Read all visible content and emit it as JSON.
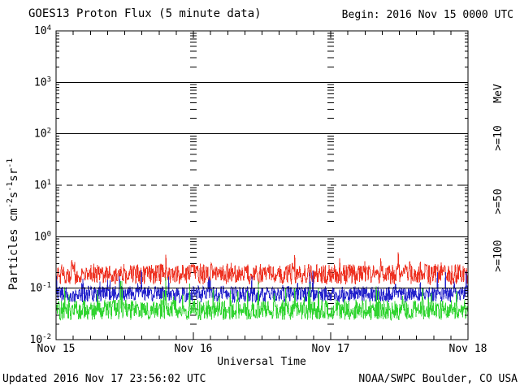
{
  "title": "GOES13 Proton Flux (5 minute data)",
  "begin": "Begin: 2016 Nov 15 0000 UTC",
  "footer": {
    "updated": "Updated 2016 Nov 17 23:56:02 UTC",
    "source": "NOAA/SWPC Boulder, CO USA"
  },
  "colors": {
    "background": "#ffffff",
    "axis": "#000000",
    "text": "#000000"
  },
  "chart_data": {
    "type": "line",
    "title": "GOES13 Proton Flux (5 minute data)",
    "xlabel": "Universal Time",
    "ylabel_parts": [
      {
        "t": "Particles cm"
      },
      {
        "sup": "-2"
      },
      {
        "t": "s"
      },
      {
        "sup": "-1"
      },
      {
        "t": "sr"
      },
      {
        "sup": "-1"
      }
    ],
    "right_axis_title": "MeV",
    "x_tick_labels": [
      "Nov 15",
      "Nov 16",
      "Nov 17",
      "Nov 18"
    ],
    "x_range": {
      "start": "2016 Nov 15 0000 UTC",
      "hours": 72,
      "minor_tick_hours": 3,
      "major_tick_hours": 24
    },
    "y_axis": {
      "scale": "log",
      "min_exp": -2,
      "max_exp": 4,
      "decade_exponents": [
        4,
        3,
        2,
        1,
        0,
        -1,
        -2
      ]
    },
    "gridlines": {
      "solid_exponents": [
        3,
        2,
        0,
        -1
      ],
      "dashed_exponents": [
        1
      ]
    },
    "cadence_minutes": 5,
    "samples_per_series": 864,
    "noise_seed": 20161115,
    "series": [
      {
        "name": ">=10",
        "unit": "MeV",
        "color": "#ee3222",
        "mean_log10_flux": -0.73,
        "noise_log10_halfrange": 0.2,
        "spike_probability": 0.05,
        "spike_log10_amplitude": 0.15,
        "approx_flux_range": [
          0.1,
          0.42
        ]
      },
      {
        "name": ">=50",
        "unit": "MeV",
        "color": "#2423cb",
        "mean_log10_flux": -1.12,
        "noise_log10_halfrange": 0.16,
        "spike_probability": 0.05,
        "spike_log10_amplitude": 0.22,
        "approx_flux_range": [
          0.05,
          0.16
        ]
      },
      {
        "name": ">=100",
        "unit": "MeV",
        "color": "#30d430",
        "mean_log10_flux": -1.42,
        "noise_log10_halfrange": 0.2,
        "spike_probability": 0.05,
        "spike_log10_amplitude": 0.25,
        "approx_flux_range": [
          0.02,
          0.1
        ]
      }
    ]
  }
}
